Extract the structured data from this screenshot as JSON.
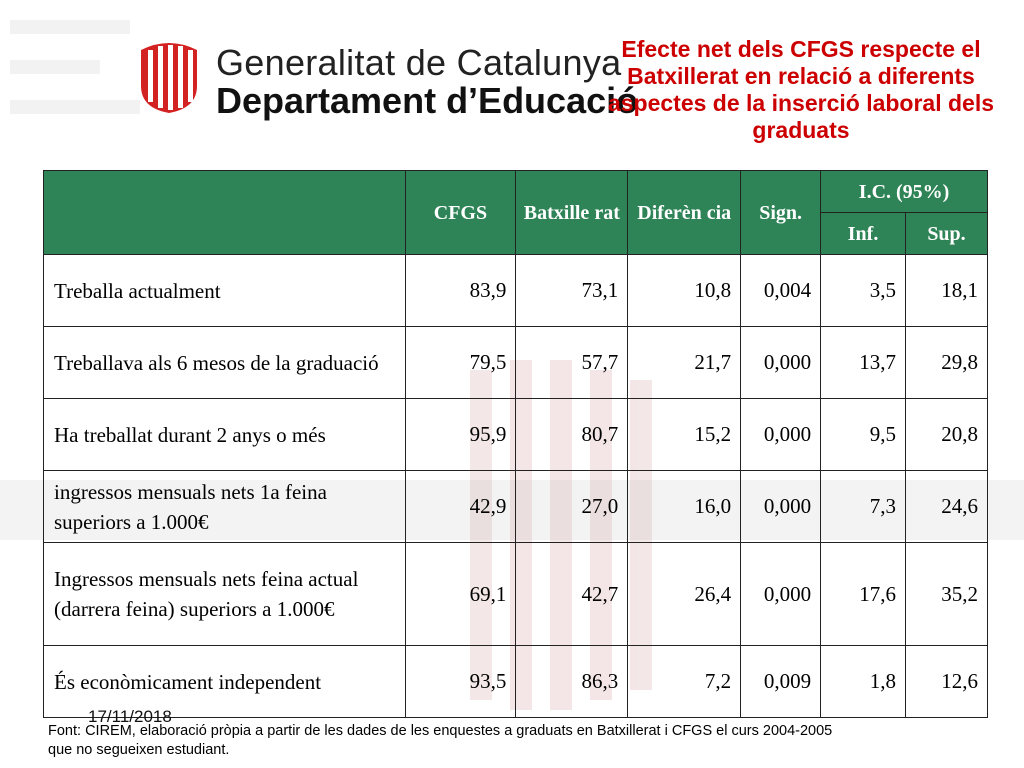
{
  "header": {
    "logo_line1": "Generalitat de Catalunya",
    "logo_line2": "Departament d’Educació",
    "title": "Efecte net dels CFGS respecte el Batxillerat en relació a diferents aspectes de la inserció laboral dels graduats"
  },
  "table": {
    "headers": {
      "cfgs": "CFGS",
      "batxillerat": "Batxille rat",
      "diferencia": "Diferèn cia",
      "sign": "Sign.",
      "ic": "I.C. (95%)",
      "inf": "Inf.",
      "sup": "Sup."
    },
    "rows": [
      {
        "label": "Treballa actualment",
        "cfgs": "83,9",
        "batx": "73,1",
        "dif": "10,8",
        "sign": "0,004",
        "inf": "3,5",
        "sup": "18,1"
      },
      {
        "label": "Treballava als 6 mesos de la graduació",
        "cfgs": "79,5",
        "batx": "57,7",
        "dif": "21,7",
        "sign": "0,000",
        "inf": "13,7",
        "sup": "29,8"
      },
      {
        "label": "Ha treballat durant 2 anys o més",
        "cfgs": "95,9",
        "batx": "80,7",
        "dif": "15,2",
        "sign": "0,000",
        "inf": "9,5",
        "sup": "20,8"
      },
      {
        "label": "ingressos mensuals nets 1a feina superiors a 1.000€",
        "cfgs": "42,9",
        "batx": "27,0",
        "dif": "16,0",
        "sign": "0,000",
        "inf": "7,3",
        "sup": "24,6"
      },
      {
        "label": "Ingressos mensuals nets feina actual (darrera feina) superiors a 1.000€",
        "cfgs": "69,1",
        "batx": "42,7",
        "dif": "26,4",
        "sign": "0,000",
        "inf": "17,6",
        "sup": "35,2"
      },
      {
        "label": "És econòmicament independent",
        "cfgs": "93,5",
        "batx": "86,3",
        "dif": "7,2",
        "sign": "0,009",
        "inf": "1,8",
        "sup": "12,6"
      }
    ]
  },
  "footer": {
    "date": "17/11/2018",
    "source": "Font: CIREM, elaboració pròpia a partir de les dades de les enquestes a graduats en Batxillerat i CFGS el curs 2004-2005 que no segueixen estudiant."
  },
  "colors": {
    "title": "#cc0000",
    "header_bg": "#2f8457",
    "watermark": "#e8c8c8"
  }
}
